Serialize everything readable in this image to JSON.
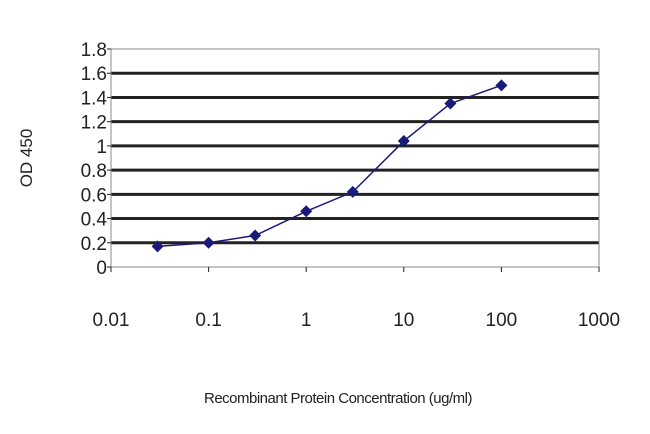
{
  "chart_data": {
    "type": "line",
    "title": "",
    "xlabel": "Recombinant Protein Concentration (ug/ml)",
    "ylabel": "OD 450",
    "x_scale": "log",
    "xlim": [
      0.01,
      1000
    ],
    "ylim": [
      0,
      1.8
    ],
    "x_ticks": [
      "0.01",
      "0.1",
      "1",
      "10",
      "100",
      "1000"
    ],
    "y_ticks": [
      "0",
      "0.2",
      "0.4",
      "0.6",
      "0.8",
      "1",
      "1.2",
      "1.4",
      "1.6",
      "1.8"
    ],
    "grid": "horizontal",
    "marker": "diamond",
    "series_color": "#1a1a7a",
    "series": [
      {
        "x": [
          0.03,
          0.1,
          0.3,
          1,
          3,
          10,
          30,
          100
        ],
        "y": [
          0.17,
          0.2,
          0.26,
          0.46,
          0.62,
          1.04,
          1.35,
          1.5
        ]
      }
    ]
  }
}
